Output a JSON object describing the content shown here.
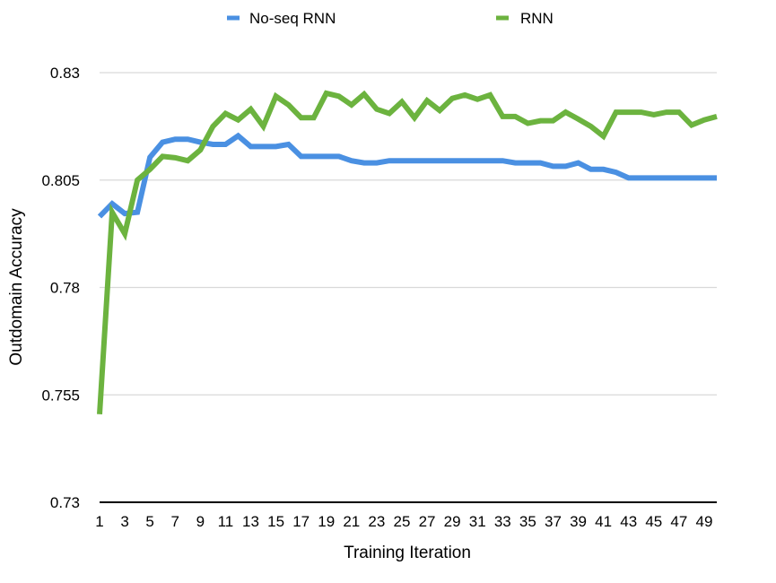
{
  "chart_data": {
    "type": "line",
    "title": "",
    "xlabel": "Training Iteration",
    "ylabel": "Outdomain Accuracy",
    "xlim": [
      1,
      50
    ],
    "ylim": [
      0.73,
      0.83
    ],
    "y_ticks": [
      "0.73",
      "0.755",
      "0.78",
      "0.805",
      "0.83"
    ],
    "x_ticks": [
      "1",
      "3",
      "5",
      "7",
      "9",
      "11",
      "13",
      "15",
      "17",
      "19",
      "21",
      "23",
      "25",
      "27",
      "29",
      "31",
      "33",
      "35",
      "37",
      "39",
      "41",
      "43",
      "45",
      "47",
      "49"
    ],
    "grid": true,
    "legend_position": "top-center",
    "x": [
      1,
      2,
      3,
      4,
      5,
      6,
      7,
      8,
      9,
      10,
      11,
      12,
      13,
      14,
      15,
      16,
      17,
      18,
      19,
      20,
      21,
      22,
      23,
      24,
      25,
      26,
      27,
      28,
      29,
      30,
      31,
      32,
      33,
      34,
      35,
      36,
      37,
      38,
      39,
      40,
      41,
      42,
      43,
      44,
      45,
      46,
      47,
      48,
      49,
      50
    ],
    "series": [
      {
        "name": "No-seq RNN",
        "color": "#4a90e2",
        "values": [
          0.7965,
          0.7995,
          0.7972,
          0.7975,
          0.8103,
          0.8138,
          0.8145,
          0.8145,
          0.8138,
          0.8133,
          0.8133,
          0.8153,
          0.8128,
          0.8128,
          0.8128,
          0.8133,
          0.8105,
          0.8105,
          0.8105,
          0.8105,
          0.8095,
          0.809,
          0.809,
          0.8095,
          0.8095,
          0.8095,
          0.8095,
          0.8095,
          0.8095,
          0.8095,
          0.8095,
          0.8095,
          0.8095,
          0.809,
          0.809,
          0.809,
          0.8082,
          0.8082,
          0.809,
          0.8075,
          0.8075,
          0.8068,
          0.8055,
          0.8055,
          0.8055,
          0.8055,
          0.8055,
          0.8055,
          0.8055,
          0.8055
        ]
      },
      {
        "name": "RNN",
        "color": "#6cb33f",
        "values": [
          0.7505,
          0.7975,
          0.7925,
          0.805,
          0.8075,
          0.8105,
          0.8102,
          0.8095,
          0.812,
          0.8175,
          0.8205,
          0.819,
          0.8215,
          0.8175,
          0.8245,
          0.8225,
          0.8195,
          0.8195,
          0.8252,
          0.8245,
          0.8225,
          0.825,
          0.8215,
          0.8205,
          0.8232,
          0.8195,
          0.8235,
          0.8212,
          0.824,
          0.8248,
          0.8238,
          0.8248,
          0.8198,
          0.8198,
          0.8182,
          0.8188,
          0.8188,
          0.8208,
          0.8192,
          0.8175,
          0.8152,
          0.8208,
          0.8208,
          0.8208,
          0.8202,
          0.8208,
          0.8208,
          0.8178,
          0.819,
          0.8198
        ]
      }
    ]
  }
}
